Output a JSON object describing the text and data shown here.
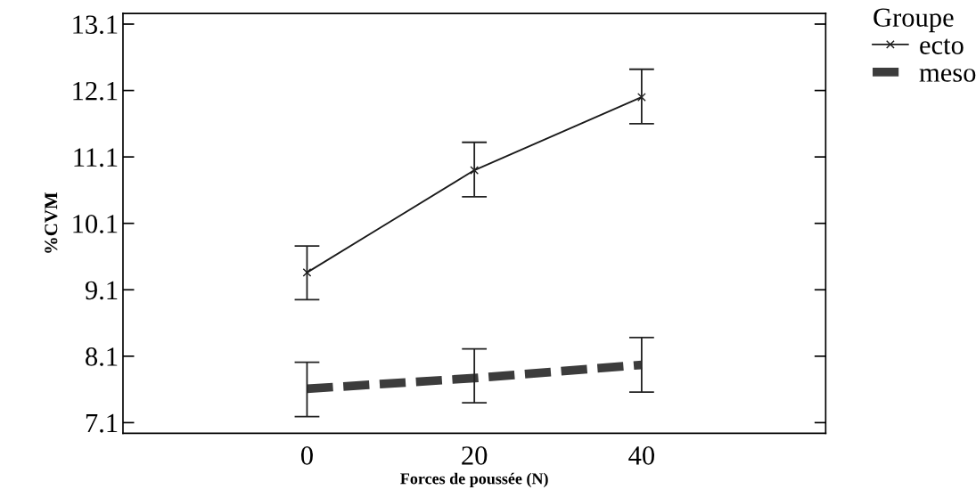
{
  "chart_data": {
    "type": "line",
    "xlabel": "Forces de poussée (N)",
    "ylabel": "%CVM",
    "legend_title": "Groupe",
    "x": [
      0,
      20,
      40
    ],
    "xlim": [
      -22,
      62
    ],
    "xticks": [
      0,
      20,
      40
    ],
    "ylim": [
      6.94,
      13.26
    ],
    "yticks": [
      7.1,
      8.1,
      9.1,
      10.1,
      11.1,
      12.1,
      13.1
    ],
    "grid": false,
    "legend": "top right",
    "series": [
      {
        "name": "ecto",
        "color": "#1a1a1a",
        "values": [
          9.36,
          10.9,
          12.0
        ],
        "errors": [
          [
            8.95,
            9.76
          ],
          [
            10.5,
            11.32
          ],
          [
            11.6,
            12.42
          ]
        ],
        "marker": "cross",
        "line_style": "solid"
      },
      {
        "name": "meso",
        "color": "#3c3c3c",
        "values": [
          7.61,
          7.77,
          7.97
        ],
        "errors": [
          [
            7.19,
            8.01
          ],
          [
            7.4,
            8.21
          ],
          [
            7.56,
            8.38
          ]
        ],
        "marker": "none",
        "line_style": "dashed"
      }
    ]
  }
}
